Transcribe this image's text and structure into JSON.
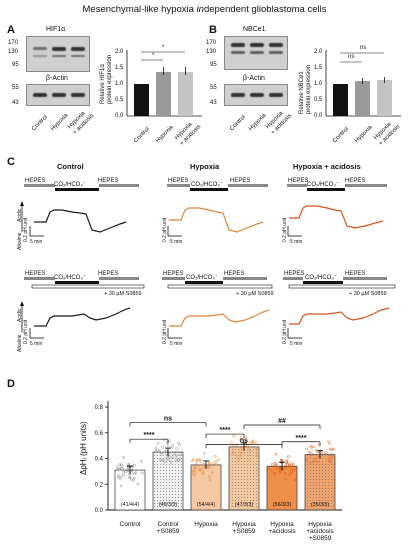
{
  "title_parts": [
    "Mesenchymal-like hypoxia ",
    "in",
    "dependent glioblastoma cells"
  ],
  "panels": {
    "A": "A",
    "B": "B",
    "C": "C",
    "D": "D"
  },
  "panel_a": {
    "blot1_label": "HIF1α",
    "blot2_label": "β-Actin",
    "mw_top": [
      "170",
      "130",
      "95"
    ],
    "mw_bottom": [
      "55",
      "43"
    ],
    "lanes": [
      "Control",
      "Hypoxia",
      "Hypoxia",
      "+ acidosis"
    ],
    "ylabel_1": "Relative HIF1α",
    "ylabel_2": "protein expression",
    "yticks": [
      "0.0",
      "0.5",
      "1.0",
      "1.5",
      "2.0"
    ],
    "sig": [
      "*",
      "*"
    ]
  },
  "panel_b": {
    "blot1_label": "NBCe1",
    "blot2_label": "β-Actin",
    "mw_top": [
      "170",
      "130",
      "95"
    ],
    "mw_bottom": [
      "55",
      "43"
    ],
    "lanes": [
      "Control",
      "Hypoxia",
      "Hypoxia",
      "+ acidosis"
    ],
    "ylabel_1": "Relative NBCe1",
    "ylabel_2": "protein expression",
    "yticks": [
      "0.0",
      "0.5",
      "1.0",
      "1.5",
      "2.0"
    ],
    "sig": [
      "ns",
      "ns"
    ]
  },
  "panel_c": {
    "col_titles": [
      "Control",
      "Hypoxia",
      "Hypoxia + acidosis"
    ],
    "hepes": "HEPES",
    "co2": "CO₂/HCO₃⁻",
    "s0859": "+ 30 µM S0859",
    "scale_v": "0.2 pH unit",
    "scale_h": "5 min",
    "acidic": "Acidic",
    "alkaline": "Alkaline",
    "colors": {
      "control": "#1a1a1a",
      "hypoxia": "#d9883a",
      "acidosis": "#d2551e"
    }
  },
  "chart_data": {
    "type": "bar",
    "ylabel": "ΔpHᵢ (pH units)",
    "yticks": [
      "0.0",
      "0.2",
      "0.4",
      "0.6",
      "0.8"
    ],
    "ylim": [
      0,
      0.8
    ],
    "categories": [
      {
        "name": "Control",
        "name2": "",
        "idx": "(1)",
        "n": "(41/4/4)"
      },
      {
        "name": "Control",
        "name2": "+S0859",
        "idx": "(2)",
        "n": "(46/3/3)"
      },
      {
        "name": "Hypoxia",
        "name2": "",
        "idx": "(3)",
        "n": "(54/4/4)"
      },
      {
        "name": "Hypoxia",
        "name2": "+S0859",
        "idx": "(4)",
        "n": "(47/3/3)"
      },
      {
        "name": "Hypoxia",
        "name2": "+acidosis",
        "idx": "(5)",
        "n": "(56/3/3)"
      },
      {
        "name": "Hypoxia",
        "name2": "+acidosis +S0859",
        "idx": "(6)",
        "n": "(35/3/3)"
      }
    ],
    "values": [
      0.31,
      0.45,
      0.35,
      0.49,
      0.34,
      0.43
    ],
    "sig": [
      "****",
      "ns",
      "****",
      "ns",
      "****",
      "##"
    ]
  }
}
